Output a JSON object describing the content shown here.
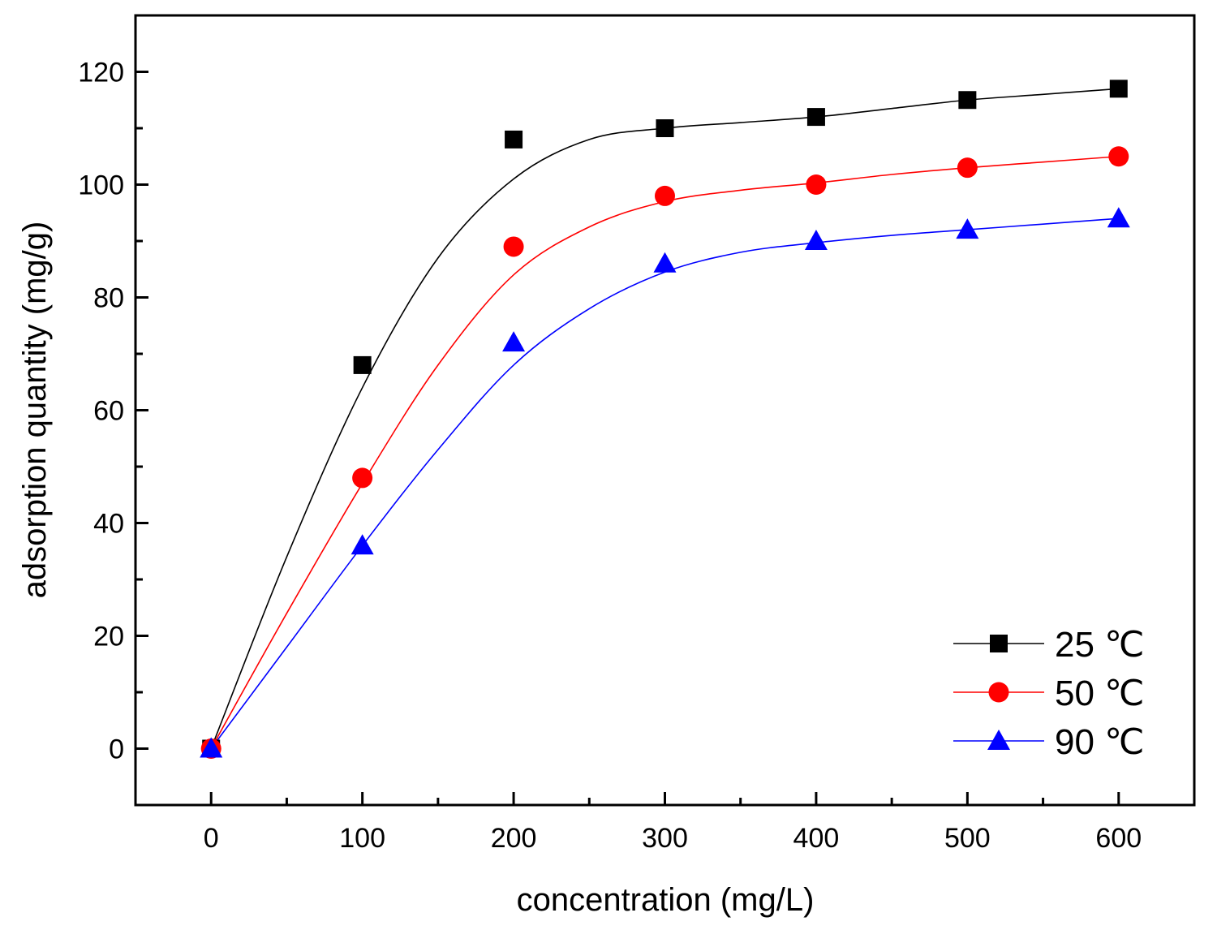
{
  "chart_data": {
    "type": "scatter",
    "title": "",
    "xlabel": "concentration (mg/L)",
    "ylabel": "adsorption quantity (mg/g)",
    "xlim": [
      -50,
      650
    ],
    "ylim": [
      -10,
      130
    ],
    "x_ticks": [
      0,
      100,
      200,
      300,
      400,
      500,
      600
    ],
    "x_tick_labels": [
      "0",
      "100",
      "200",
      "300",
      "400",
      "500",
      "600"
    ],
    "y_ticks": [
      0,
      20,
      40,
      60,
      80,
      100,
      120
    ],
    "y_tick_labels": [
      "0",
      "20",
      "40",
      "60",
      "80",
      "100",
      "120"
    ],
    "grid": false,
    "legend_position": "bottom-right",
    "series": [
      {
        "name": "25 ℃",
        "color": "#000000",
        "marker": "square",
        "x": [
          0,
          100,
          200,
          300,
          400,
          500,
          600
        ],
        "values": [
          0,
          68,
          108,
          110,
          112,
          115,
          117
        ],
        "fit_x": [
          0,
          50,
          100,
          150,
          200,
          250,
          300,
          350,
          400,
          450,
          500,
          550,
          600
        ],
        "fit_y": [
          0,
          34,
          64,
          87,
          101,
          108,
          110,
          111,
          112,
          113.5,
          115,
          116,
          117
        ]
      },
      {
        "name": "50 ℃",
        "color": "#ff0000",
        "marker": "circle",
        "x": [
          0,
          100,
          200,
          300,
          400,
          500,
          600
        ],
        "values": [
          0,
          48,
          89,
          98,
          100,
          103,
          105
        ],
        "fit_x": [
          0,
          50,
          100,
          150,
          200,
          250,
          300,
          350,
          400,
          450,
          500,
          550,
          600
        ],
        "fit_y": [
          0,
          24,
          47,
          68,
          84,
          92.5,
          97,
          99,
          100.3,
          101.8,
          103,
          104,
          105
        ]
      },
      {
        "name": "90 ℃",
        "color": "#0000ff",
        "marker": "triangle",
        "x": [
          0,
          100,
          200,
          300,
          400,
          500,
          600
        ],
        "values": [
          0,
          36,
          72,
          86,
          90,
          92,
          94
        ],
        "fit_x": [
          0,
          50,
          100,
          150,
          200,
          250,
          300,
          350,
          400,
          450,
          500,
          550,
          600
        ],
        "fit_y": [
          0,
          18,
          36,
          53,
          68,
          78,
          84.5,
          88,
          89.7,
          91,
          92,
          93,
          94
        ]
      }
    ]
  }
}
